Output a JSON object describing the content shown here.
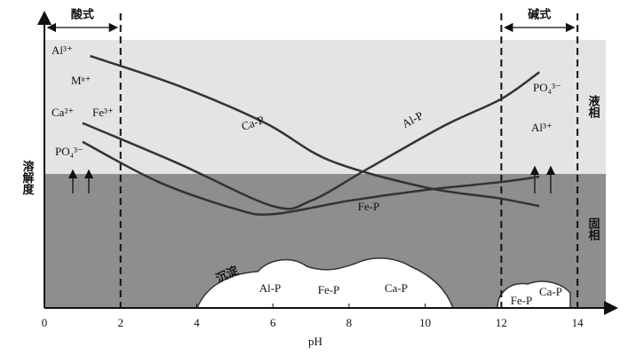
{
  "chart_data": {
    "type": "line",
    "xlabel": "pH",
    "ylabel": "溶解度",
    "xlim": [
      0,
      15
    ],
    "ylim": [
      0,
      100
    ],
    "xticks": [
      0,
      2,
      4,
      6,
      8,
      10,
      12,
      14
    ],
    "series": [
      {
        "name": "Ca-P",
        "color": "#333333",
        "x": [
          1.2,
          3.5,
          5.8,
          7.5,
          10,
          11.9,
          13
        ],
        "values": [
          94,
          83,
          69,
          55,
          45,
          41,
          38
        ]
      },
      {
        "name": "Al-P",
        "color": "#333333",
        "x": [
          1,
          3.5,
          6,
          7,
          8.5,
          10.5,
          12,
          13
        ],
        "values": [
          69,
          54,
          38,
          40,
          52,
          68,
          78,
          88
        ]
      },
      {
        "name": "Fe-P",
        "color": "#333333",
        "x": [
          1,
          3,
          5,
          6,
          8,
          10,
          12,
          13
        ],
        "values": [
          62,
          47,
          37,
          35,
          40,
          44,
          47,
          49
        ]
      }
    ],
    "regions": [
      {
        "label": "酸式",
        "x": [
          0,
          2
        ]
      },
      {
        "label": "碱式",
        "x": [
          12,
          14
        ]
      }
    ],
    "phases": {
      "liquid": "液相",
      "solid": "固相"
    },
    "ions_left": [
      "Al³⁺",
      "Mⁿ⁺",
      "Ca²⁺",
      "Fe³⁺",
      "PO₄³⁻"
    ],
    "ions_right": [
      "PO₄³⁻",
      "Al³⁺"
    ],
    "precipitate": {
      "label": "沉淀",
      "compounds_acid": [
        "Al-P",
        "Fe-P",
        "Ca-P"
      ],
      "compounds_alkaline": [
        "Fe-P",
        "Ca-P"
      ]
    }
  }
}
